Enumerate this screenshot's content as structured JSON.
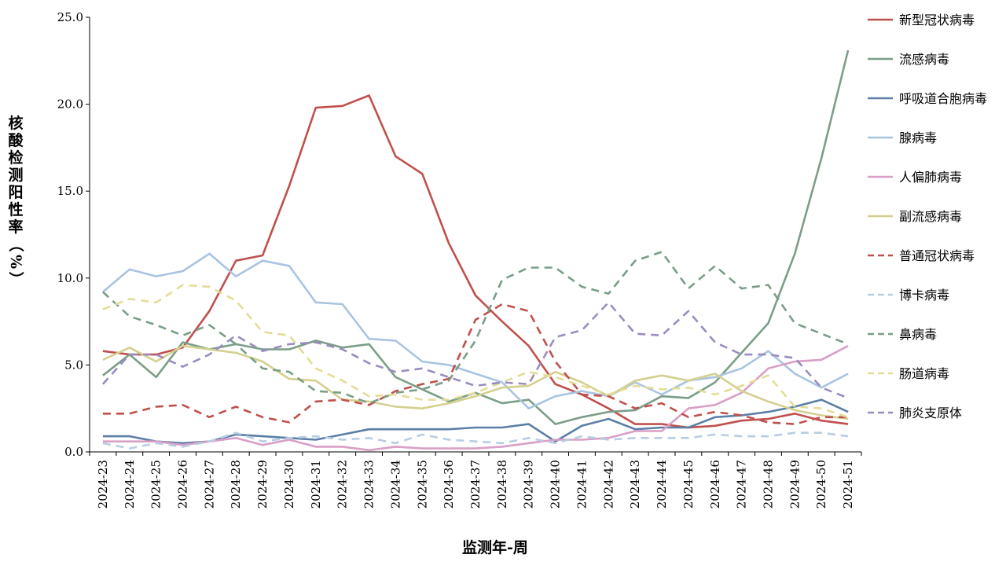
{
  "chart_data": {
    "type": "line",
    "xlabel": "监测年-周",
    "ylabel": "核酸检测阳性率（%）",
    "ylim": [
      0,
      25
    ],
    "yticks": [
      "0.0",
      "5.0",
      "10.0",
      "15.0",
      "20.0",
      "25.0"
    ],
    "grid": false,
    "legend_position": "right",
    "categories": [
      "2024-23",
      "2024-24",
      "2024-25",
      "2024-26",
      "2024-27",
      "2024-28",
      "2024-29",
      "2024-30",
      "2024-31",
      "2024-32",
      "2024-33",
      "2024-34",
      "2024-35",
      "2024-36",
      "2024-37",
      "2024-38",
      "2024-39",
      "2024-40",
      "2024-41",
      "2024-42",
      "2024-43",
      "2024-44",
      "2024-45",
      "2024-46",
      "2024-47",
      "2024-48",
      "2024-49",
      "2024-50",
      "2024-51"
    ],
    "series": [
      {
        "name": "新型冠状病毒",
        "color": "#C0504D",
        "dash": "solid",
        "values": [
          5.8,
          5.6,
          5.6,
          6.0,
          8.1,
          11.0,
          11.3,
          15.3,
          19.8,
          19.9,
          20.5,
          17.0,
          16.0,
          12.0,
          9.0,
          7.5,
          6.1,
          3.9,
          3.3,
          2.5,
          1.6,
          1.6,
          1.4,
          1.5,
          1.8,
          1.9,
          2.2,
          1.8,
          1.6
        ]
      },
      {
        "name": "流感病毒",
        "color": "#7A9E87",
        "dash": "solid",
        "values": [
          4.4,
          5.6,
          4.3,
          6.3,
          5.9,
          6.2,
          5.9,
          5.9,
          6.4,
          6.0,
          6.2,
          4.3,
          3.6,
          2.9,
          3.4,
          2.8,
          3.0,
          1.6,
          2.0,
          2.3,
          2.4,
          3.2,
          3.1,
          4.0,
          5.7,
          7.4,
          11.4,
          16.9,
          23.1
        ]
      },
      {
        "name": "呼吸道合胞病毒",
        "color": "#5B7FA6",
        "dash": "solid",
        "values": [
          0.9,
          0.9,
          0.6,
          0.5,
          0.6,
          1.0,
          0.9,
          0.8,
          0.7,
          1.0,
          1.3,
          1.3,
          1.3,
          1.3,
          1.4,
          1.4,
          1.6,
          0.6,
          1.5,
          1.9,
          1.3,
          1.4,
          1.4,
          2.0,
          2.1,
          2.3,
          2.6,
          3.0,
          2.3
        ]
      },
      {
        "name": "腺病毒",
        "color": "#A9C4E0",
        "dash": "solid",
        "values": [
          9.2,
          10.5,
          10.1,
          10.4,
          11.4,
          10.1,
          11.0,
          10.7,
          8.6,
          8.5,
          6.5,
          6.4,
          5.2,
          5.0,
          4.5,
          4.0,
          2.5,
          3.2,
          3.5,
          3.2,
          4.0,
          3.3,
          4.1,
          4.3,
          4.8,
          5.8,
          4.5,
          3.7,
          4.5
        ]
      },
      {
        "name": "人偏肺病毒",
        "color": "#D99FC7",
        "dash": "solid",
        "values": [
          0.6,
          0.6,
          0.6,
          0.4,
          0.6,
          0.8,
          0.4,
          0.7,
          0.3,
          0.3,
          0.1,
          0.3,
          0.2,
          0.2,
          0.2,
          0.3,
          0.5,
          0.7,
          0.7,
          0.8,
          1.2,
          1.2,
          2.5,
          2.7,
          3.4,
          4.8,
          5.2,
          5.3,
          6.1
        ]
      },
      {
        "name": "副流感病毒",
        "color": "#D4D08F",
        "dash": "solid",
        "values": [
          5.3,
          6.0,
          5.2,
          6.1,
          5.9,
          5.7,
          5.2,
          4.2,
          4.1,
          3.0,
          2.9,
          2.6,
          2.5,
          2.8,
          3.2,
          3.7,
          3.8,
          4.6,
          4.0,
          3.2,
          4.1,
          4.4,
          4.1,
          4.5,
          3.5,
          2.9,
          2.4,
          2.1,
          1.9
        ]
      },
      {
        "name": "普通冠状病毒",
        "color": "#C0504D",
        "dash": "dash",
        "values": [
          2.2,
          2.2,
          2.6,
          2.7,
          2.0,
          2.6,
          2.0,
          1.7,
          2.9,
          3.0,
          2.7,
          3.5,
          3.9,
          4.2,
          7.6,
          8.5,
          8.1,
          5.2,
          3.3,
          3.2,
          2.5,
          2.8,
          2.0,
          2.3,
          2.1,
          1.7,
          1.6,
          2.0,
          2.0
        ]
      },
      {
        "name": "博卡病毒",
        "color": "#B7CDE3",
        "dash": "dash",
        "values": [
          0.5,
          0.2,
          0.5,
          0.3,
          0.6,
          1.1,
          0.6,
          0.8,
          0.9,
          0.7,
          0.8,
          0.5,
          1.0,
          0.7,
          0.6,
          0.5,
          0.8,
          0.5,
          0.9,
          0.7,
          0.8,
          0.8,
          0.8,
          1.0,
          0.9,
          0.9,
          1.1,
          1.1,
          0.9
        ]
      },
      {
        "name": "鼻病毒",
        "color": "#7A9E87",
        "dash": "dash",
        "values": [
          9.2,
          7.8,
          7.3,
          6.7,
          7.3,
          6.2,
          4.8,
          4.6,
          3.5,
          3.4,
          2.8,
          3.4,
          3.6,
          4.1,
          6.4,
          9.9,
          10.6,
          10.6,
          9.5,
          9.1,
          11.0,
          11.5,
          9.4,
          10.7,
          9.4,
          9.6,
          7.4,
          6.8,
          6.2
        ]
      },
      {
        "name": "肠道病毒",
        "color": "#E3DD97",
        "dash": "dash",
        "values": [
          8.2,
          8.8,
          8.6,
          9.6,
          9.5,
          8.7,
          6.9,
          6.7,
          4.8,
          4.1,
          3.2,
          3.3,
          3.0,
          3.0,
          3.4,
          4.0,
          4.6,
          4.3,
          3.8,
          3.3,
          3.8,
          3.6,
          3.7,
          3.3,
          3.8,
          4.4,
          2.6,
          2.5,
          2.0
        ]
      },
      {
        "name": "肺炎支原体",
        "color": "#9B8CC0",
        "dash": "dash",
        "values": [
          3.9,
          5.6,
          5.6,
          4.9,
          5.6,
          6.7,
          5.8,
          6.2,
          6.3,
          5.9,
          5.1,
          4.6,
          4.8,
          4.3,
          3.8,
          4.0,
          3.9,
          6.6,
          7.0,
          8.6,
          6.8,
          6.7,
          8.1,
          6.3,
          5.6,
          5.6,
          5.4,
          3.7,
          3.1
        ]
      }
    ]
  }
}
